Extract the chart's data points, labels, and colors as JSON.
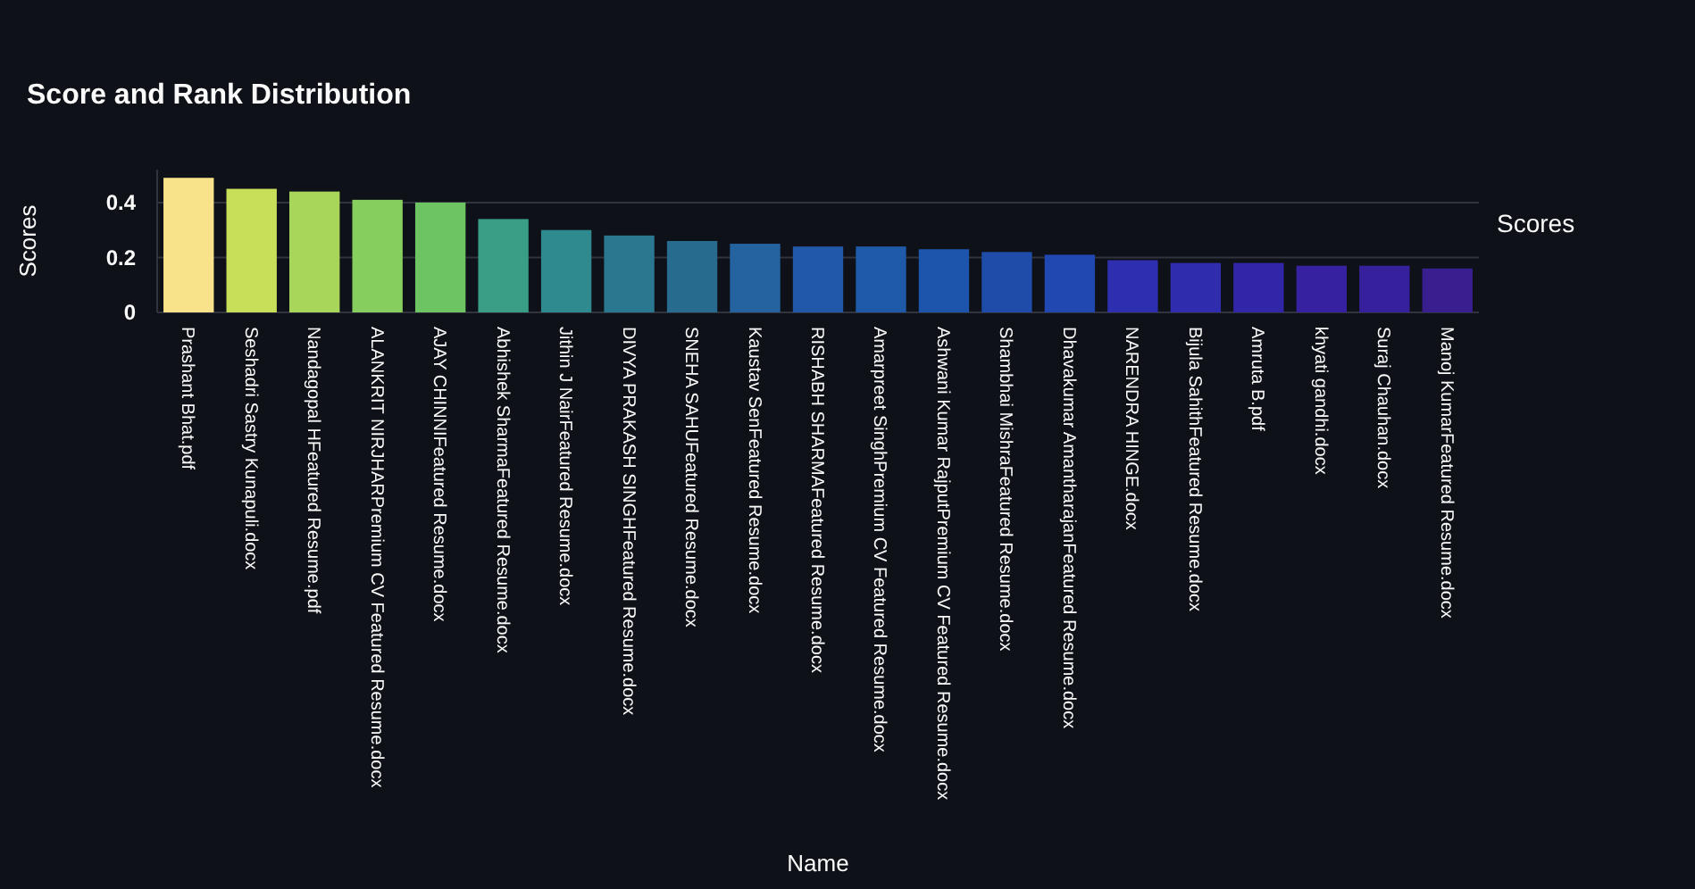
{
  "chart_data": {
    "type": "bar",
    "title": "Score and Rank Distribution",
    "xlabel": "Name",
    "ylabel": "Scores",
    "legend_title": "Scores",
    "categories": [
      "Prashant Bhat.pdf",
      "Seshadri Sastry Kunapuli.docx",
      "Nandagopal HFeatured Resume.pdf",
      "ALANKRIT NIRJHARPremium CV Featured Resume.docx",
      "AJAY CHINNIFeatured Resume.docx",
      "Abhishek SharmaFeatured Resume.docx",
      "Jithin J NairFeatured Resume.docx",
      "DIVYA PRAKASH SINGHFeatured Resume.docx",
      "SNEHA SAHUFeatured Resume.docx",
      "Kaustav SenFeatured Resume.docx",
      "RISHABH SHARMAFeatured Resume.docx",
      "Amarpreet SinghPremium CV Featured Resume.docx",
      "Ashwani Kumar RajputPremium CV Featured Resume.docx",
      "Shambhai MishraFeatured Resume.docx",
      "Dhavakumar AmantharajanFeatured Resume.docx",
      "NARENDRA HINGE.docx",
      "Bijula SahithFeatured Resume.docx",
      "Amruta B.pdf",
      "khyati gandhi.docx",
      "Suraj Chauhan.docx",
      "Manoj KumarFeatured Resume.docx"
    ],
    "values": [
      0.49,
      0.45,
      0.44,
      0.41,
      0.4,
      0.34,
      0.3,
      0.28,
      0.26,
      0.25,
      0.24,
      0.24,
      0.23,
      0.22,
      0.21,
      0.19,
      0.18,
      0.18,
      0.17,
      0.17,
      0.16
    ],
    "colors": [
      "#f9e38a",
      "#c8df5a",
      "#a8d65a",
      "#86cf5e",
      "#6cc463",
      "#3a9d86",
      "#2e8a8f",
      "#29788f",
      "#276c8f",
      "#2563a0",
      "#2158a8",
      "#1e5aa8",
      "#1d55ac",
      "#1f4ca8",
      "#2148b0",
      "#2e2fb0",
      "#302cae",
      "#3226a8",
      "#3622a0",
      "#37209c",
      "#381e8e"
    ],
    "ylim": [
      0,
      0.52
    ],
    "yticks": [
      0,
      0.2,
      0.4
    ],
    "grid": "y"
  }
}
